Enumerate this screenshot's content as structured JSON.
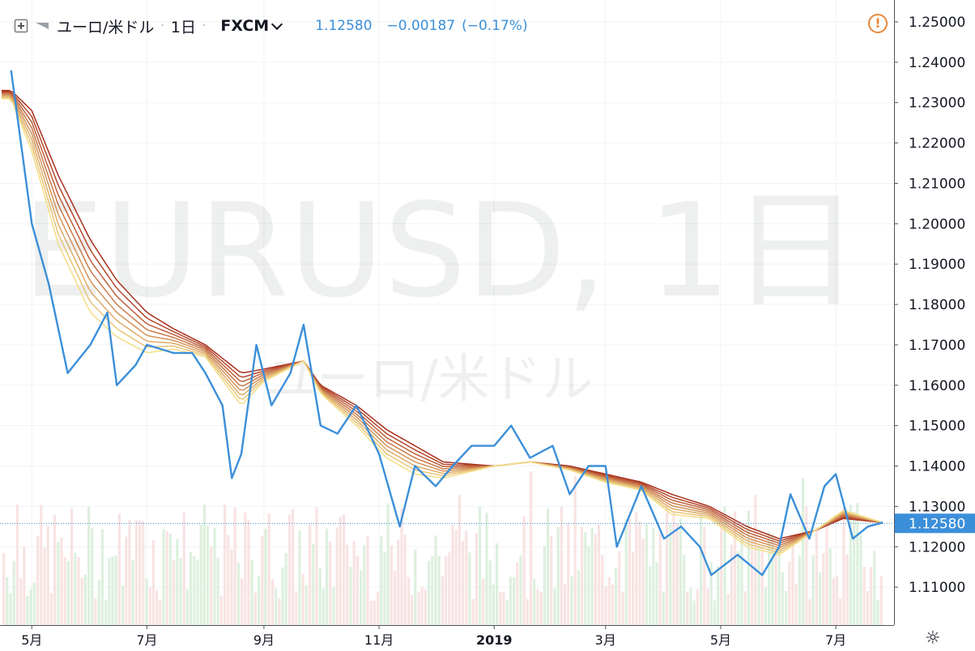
{
  "header": {
    "symbol_name": "ユーロ/米ドル",
    "interval": "1日",
    "source": "FXCM",
    "last_price": "1.12580",
    "change": "−0.00187",
    "change_pct": "(−0.17%)",
    "alert_icon": "alert-icon"
  },
  "watermark": {
    "line1": "EURUSD, 1日",
    "line2": "ユーロ/米ドル"
  },
  "colors": {
    "price": "#3b8fd9",
    "ribbon_slow": "#a82e1c",
    "ribbon_fast": "#f4dd86",
    "vol_up": "#d4ecd6",
    "vol_down": "#f6dcdc",
    "last_price_label": "#3b8fd9"
  },
  "chart_data": {
    "type": "line",
    "symbol": "EURUSD",
    "series": [
      {
        "x": [
          "2018-04-20",
          "2018-05-01",
          "2018-05-10",
          "2018-05-20",
          "2018-06-01",
          "2018-06-10",
          "2018-06-15",
          "2018-06-25",
          "2018-07-01",
          "2018-07-15",
          "2018-07-25",
          "2018-08-01",
          "2018-08-10",
          "2018-08-15",
          "2018-08-20",
          "2018-08-28",
          "2018-09-05",
          "2018-09-15",
          "2018-09-22",
          "2018-10-01",
          "2018-10-10",
          "2018-10-20",
          "2018-11-01",
          "2018-11-12",
          "2018-11-20",
          "2018-12-01",
          "2018-12-10",
          "2018-12-20",
          "2019-01-01",
          "2019-01-10",
          "2019-01-20",
          "2019-02-01",
          "2019-02-10",
          "2019-02-20",
          "2019-03-01",
          "2019-03-07",
          "2019-03-20",
          "2019-04-01",
          "2019-04-10",
          "2019-04-20",
          "2019-04-26",
          "2019-05-10",
          "2019-05-23",
          "2019-06-01",
          "2019-06-07",
          "2019-06-17",
          "2019-06-25",
          "2019-07-01",
          "2019-07-10",
          "2019-07-18",
          "2019-07-26"
        ],
        "values": [
          1.238,
          1.2,
          1.185,
          1.163,
          1.17,
          1.178,
          1.16,
          1.165,
          1.17,
          1.168,
          1.168,
          1.163,
          1.155,
          1.137,
          1.143,
          1.17,
          1.155,
          1.163,
          1.175,
          1.15,
          1.148,
          1.155,
          1.143,
          1.125,
          1.14,
          1.135,
          1.14,
          1.145,
          1.145,
          1.15,
          1.142,
          1.145,
          1.133,
          1.14,
          1.14,
          1.12,
          1.135,
          1.122,
          1.125,
          1.12,
          1.113,
          1.118,
          1.113,
          1.12,
          1.133,
          1.122,
          1.135,
          1.138,
          1.122,
          1.125,
          1.126
        ]
      },
      {
        "x": [
          "2018-04-20",
          "2018-05-01",
          "2018-05-15",
          "2018-06-01",
          "2018-06-15",
          "2018-07-01",
          "2018-07-15",
          "2018-08-01",
          "2018-08-20",
          "2018-09-01",
          "2018-09-22",
          "2018-10-01",
          "2018-10-20",
          "2018-11-05",
          "2018-11-20",
          "2018-12-05",
          "2019-01-01",
          "2019-01-20",
          "2019-02-10",
          "2019-03-01",
          "2019-03-20",
          "2019-04-05",
          "2019-04-25",
          "2019-05-15",
          "2019-06-01",
          "2019-06-20",
          "2019-07-05",
          "2019-07-26"
        ],
        "values": [
          1.233,
          1.228,
          1.212,
          1.196,
          1.186,
          1.178,
          1.174,
          1.17,
          1.163,
          1.164,
          1.166,
          1.16,
          1.155,
          1.149,
          1.145,
          1.141,
          1.14,
          1.141,
          1.14,
          1.138,
          1.136,
          1.133,
          1.13,
          1.125,
          1.122,
          1.124,
          1.127,
          1.126
        ]
      },
      {
        "x": [
          "2018-04-20",
          "2018-05-01",
          "2018-05-15",
          "2018-06-01",
          "2018-06-15",
          "2018-07-01",
          "2018-07-15",
          "2018-08-01",
          "2018-08-20",
          "2018-09-01",
          "2018-09-22",
          "2018-10-01",
          "2018-10-20",
          "2018-11-05",
          "2018-11-20",
          "2018-12-05",
          "2019-01-01",
          "2019-01-20",
          "2019-02-10",
          "2019-03-01",
          "2019-03-20",
          "2019-04-05",
          "2019-04-25",
          "2019-05-15",
          "2019-06-01",
          "2019-06-20",
          "2019-07-05",
          "2019-07-26"
        ],
        "values": [
          1.231,
          1.218,
          1.195,
          1.178,
          1.172,
          1.168,
          1.169,
          1.167,
          1.155,
          1.161,
          1.166,
          1.158,
          1.15,
          1.142,
          1.138,
          1.137,
          1.14,
          1.141,
          1.139,
          1.136,
          1.134,
          1.128,
          1.127,
          1.12,
          1.118,
          1.124,
          1.129,
          1.126
        ]
      }
    ],
    "ylim": [
      1.101,
      1.252
    ],
    "yticks": [
      "1.25000",
      "1.24000",
      "1.23000",
      "1.22000",
      "1.21000",
      "1.20000",
      "1.19000",
      "1.18000",
      "1.17000",
      "1.16000",
      "1.15000",
      "1.14000",
      "1.13000",
      "1.12000",
      "1.11000"
    ],
    "xticks": [
      "5月",
      "7月",
      "9月",
      "11月",
      "2019",
      "3月",
      "5月",
      "7月"
    ],
    "last_price_label": "1.12580",
    "grid": true
  }
}
